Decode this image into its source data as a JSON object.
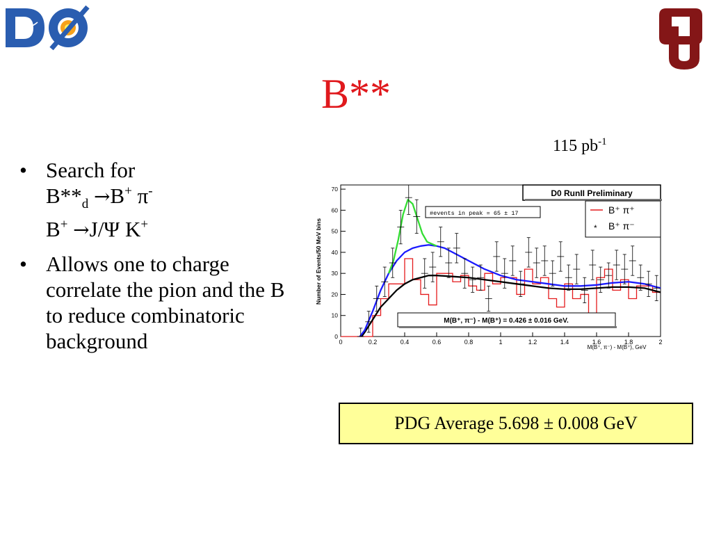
{
  "slide": {
    "title": "B**",
    "luminosity": {
      "value": "115 pb",
      "exponent": "-1"
    }
  },
  "logos": {
    "left": "D0",
    "right": "OU"
  },
  "bullets": [
    {
      "p1": "Search for",
      "p2": "B**",
      "p2_sub": "d",
      "p2_arrow": "→",
      "p2_b": "B",
      "p2_bsup": "+",
      "p2_pi": "π",
      "p2_pisup": "-"
    },
    {
      "text": "Allows one to charge correlate the pion and the B to reduce combinatoric background"
    }
  ],
  "subline": {
    "b": "B",
    "bsup": "+",
    "arrow": "→",
    "jpsi": "J/Ψ",
    "k": "K",
    "ksup": "+"
  },
  "pdg_box": {
    "text": "PDG Average 5.698 ± 0.008 GeV"
  },
  "chart_data": {
    "type": "line",
    "banner": "D0 RunII Preliminary",
    "ylabel": "Number of Events/50 MeV bins",
    "xlabel": "M(B⁺, π⁻) - M(B⁺), GeV",
    "xlim": [
      0,
      2
    ],
    "ylim": [
      0,
      72
    ],
    "x_ticks": [
      "0",
      "0.2",
      "0.4",
      "0.6",
      "0.8",
      "1",
      "1.2",
      "1.4",
      "1.6",
      "1.8",
      "2"
    ],
    "y_ticks": [
      "0",
      "10",
      "20",
      "30",
      "40",
      "50",
      "60",
      "70"
    ],
    "peak_annotation": "#events in peak = 65 ± 17",
    "mass_annotation": "M(B⁺, π⁻) - M(B⁺) = 0.426 ± 0.016 GeV.",
    "legend": [
      {
        "label": "B⁺ π⁺",
        "style": "line",
        "color": "#e41a1c"
      },
      {
        "label": "B⁺ π⁻",
        "style": "marker",
        "color": "#000000"
      }
    ],
    "series": [
      {
        "name": "B⁺ π⁺",
        "style": "histogram",
        "color": "#e41a1c",
        "bin_edges": [
          0,
          0.05,
          0.1,
          0.15,
          0.2,
          0.25,
          0.3,
          0.35,
          0.4,
          0.45,
          0.5,
          0.55,
          0.6,
          0.65,
          0.7,
          0.75,
          0.8,
          0.85,
          0.9,
          0.95,
          1.0,
          1.05,
          1.1,
          1.15,
          1.2,
          1.25,
          1.3,
          1.35,
          1.4,
          1.45,
          1.5,
          1.55,
          1.6,
          1.65,
          1.7,
          1.75,
          1.8,
          1.85,
          1.9,
          1.95,
          2.0
        ],
        "values": [
          0,
          0,
          0,
          0,
          10,
          18,
          25,
          25,
          37,
          27,
          20,
          15,
          30,
          30,
          26,
          29,
          24,
          22,
          30,
          25,
          28,
          28,
          20,
          32,
          25,
          28,
          18,
          14,
          25,
          18,
          20,
          10,
          28,
          32,
          22,
          27,
          18,
          24,
          24,
          21
        ]
      },
      {
        "name": "B⁺ π⁻",
        "style": "errorbar",
        "color": "#000000",
        "x": [
          0.125,
          0.175,
          0.225,
          0.275,
          0.325,
          0.375,
          0.425,
          0.475,
          0.525,
          0.575,
          0.625,
          0.675,
          0.725,
          0.775,
          0.825,
          0.875,
          0.925,
          0.975,
          1.025,
          1.075,
          1.125,
          1.175,
          1.225,
          1.275,
          1.325,
          1.375,
          1.425,
          1.475,
          1.525,
          1.575,
          1.625,
          1.675,
          1.725,
          1.775,
          1.825,
          1.875,
          1.925,
          1.975
        ],
        "y": [
          0,
          7,
          18,
          26,
          35,
          52,
          66,
          57,
          30,
          33,
          45,
          35,
          42,
          30,
          27,
          28,
          18,
          38,
          30,
          36,
          25,
          40,
          35,
          36,
          30,
          38,
          28,
          32,
          22,
          34,
          27,
          29,
          34,
          32,
          36,
          28,
          25,
          23
        ],
        "err": [
          4,
          5,
          6,
          7,
          7,
          8,
          8,
          8,
          7,
          7,
          7,
          7,
          7,
          7,
          6,
          6,
          6,
          7,
          7,
          7,
          6,
          7,
          7,
          7,
          6,
          7,
          6,
          7,
          6,
          7,
          6,
          6,
          7,
          7,
          7,
          6,
          6,
          6
        ]
      },
      {
        "name": "fit",
        "style": "line",
        "color": "#1a1aff",
        "x": [
          0.12,
          0.15,
          0.2,
          0.25,
          0.3,
          0.35,
          0.4,
          0.45,
          0.5,
          0.55,
          0.6,
          0.65,
          0.7,
          0.8,
          0.9,
          1.0,
          1.1,
          1.2,
          1.3,
          1.4,
          1.5,
          1.6,
          1.7,
          1.8,
          1.9,
          2.0
        ],
        "y": [
          0,
          3,
          12,
          22,
          30,
          36,
          40,
          42,
          43,
          43.5,
          43,
          42,
          40,
          36,
          32,
          29,
          27,
          26,
          25,
          24,
          24,
          24.5,
          25.5,
          26,
          25,
          23
        ]
      },
      {
        "name": "fit",
        "style": "line",
        "color": "#000000",
        "x": [
          0.13,
          0.15,
          0.2,
          0.25,
          0.3,
          0.35,
          0.4,
          0.45,
          0.5,
          0.55,
          0.6,
          0.7,
          0.8,
          0.9,
          1.0,
          1.1,
          1.2,
          1.3,
          1.4,
          1.5,
          1.6,
          1.7,
          1.8,
          1.9,
          2.0
        ],
        "y": [
          0,
          2,
          8,
          14,
          18,
          22,
          25,
          27,
          28,
          29,
          29,
          28.5,
          28,
          27,
          26,
          25,
          24,
          23,
          22.5,
          22.5,
          23,
          23.5,
          23.5,
          23,
          21
        ]
      },
      {
        "name": "fit",
        "style": "line",
        "color": "#33dd33",
        "x": [
          0.3,
          0.33,
          0.36,
          0.39,
          0.42,
          0.45,
          0.48,
          0.51,
          0.54,
          0.57,
          0.6
        ],
        "y": [
          30,
          36,
          46,
          58,
          65,
          63,
          56,
          49,
          45,
          44,
          43
        ]
      }
    ]
  }
}
